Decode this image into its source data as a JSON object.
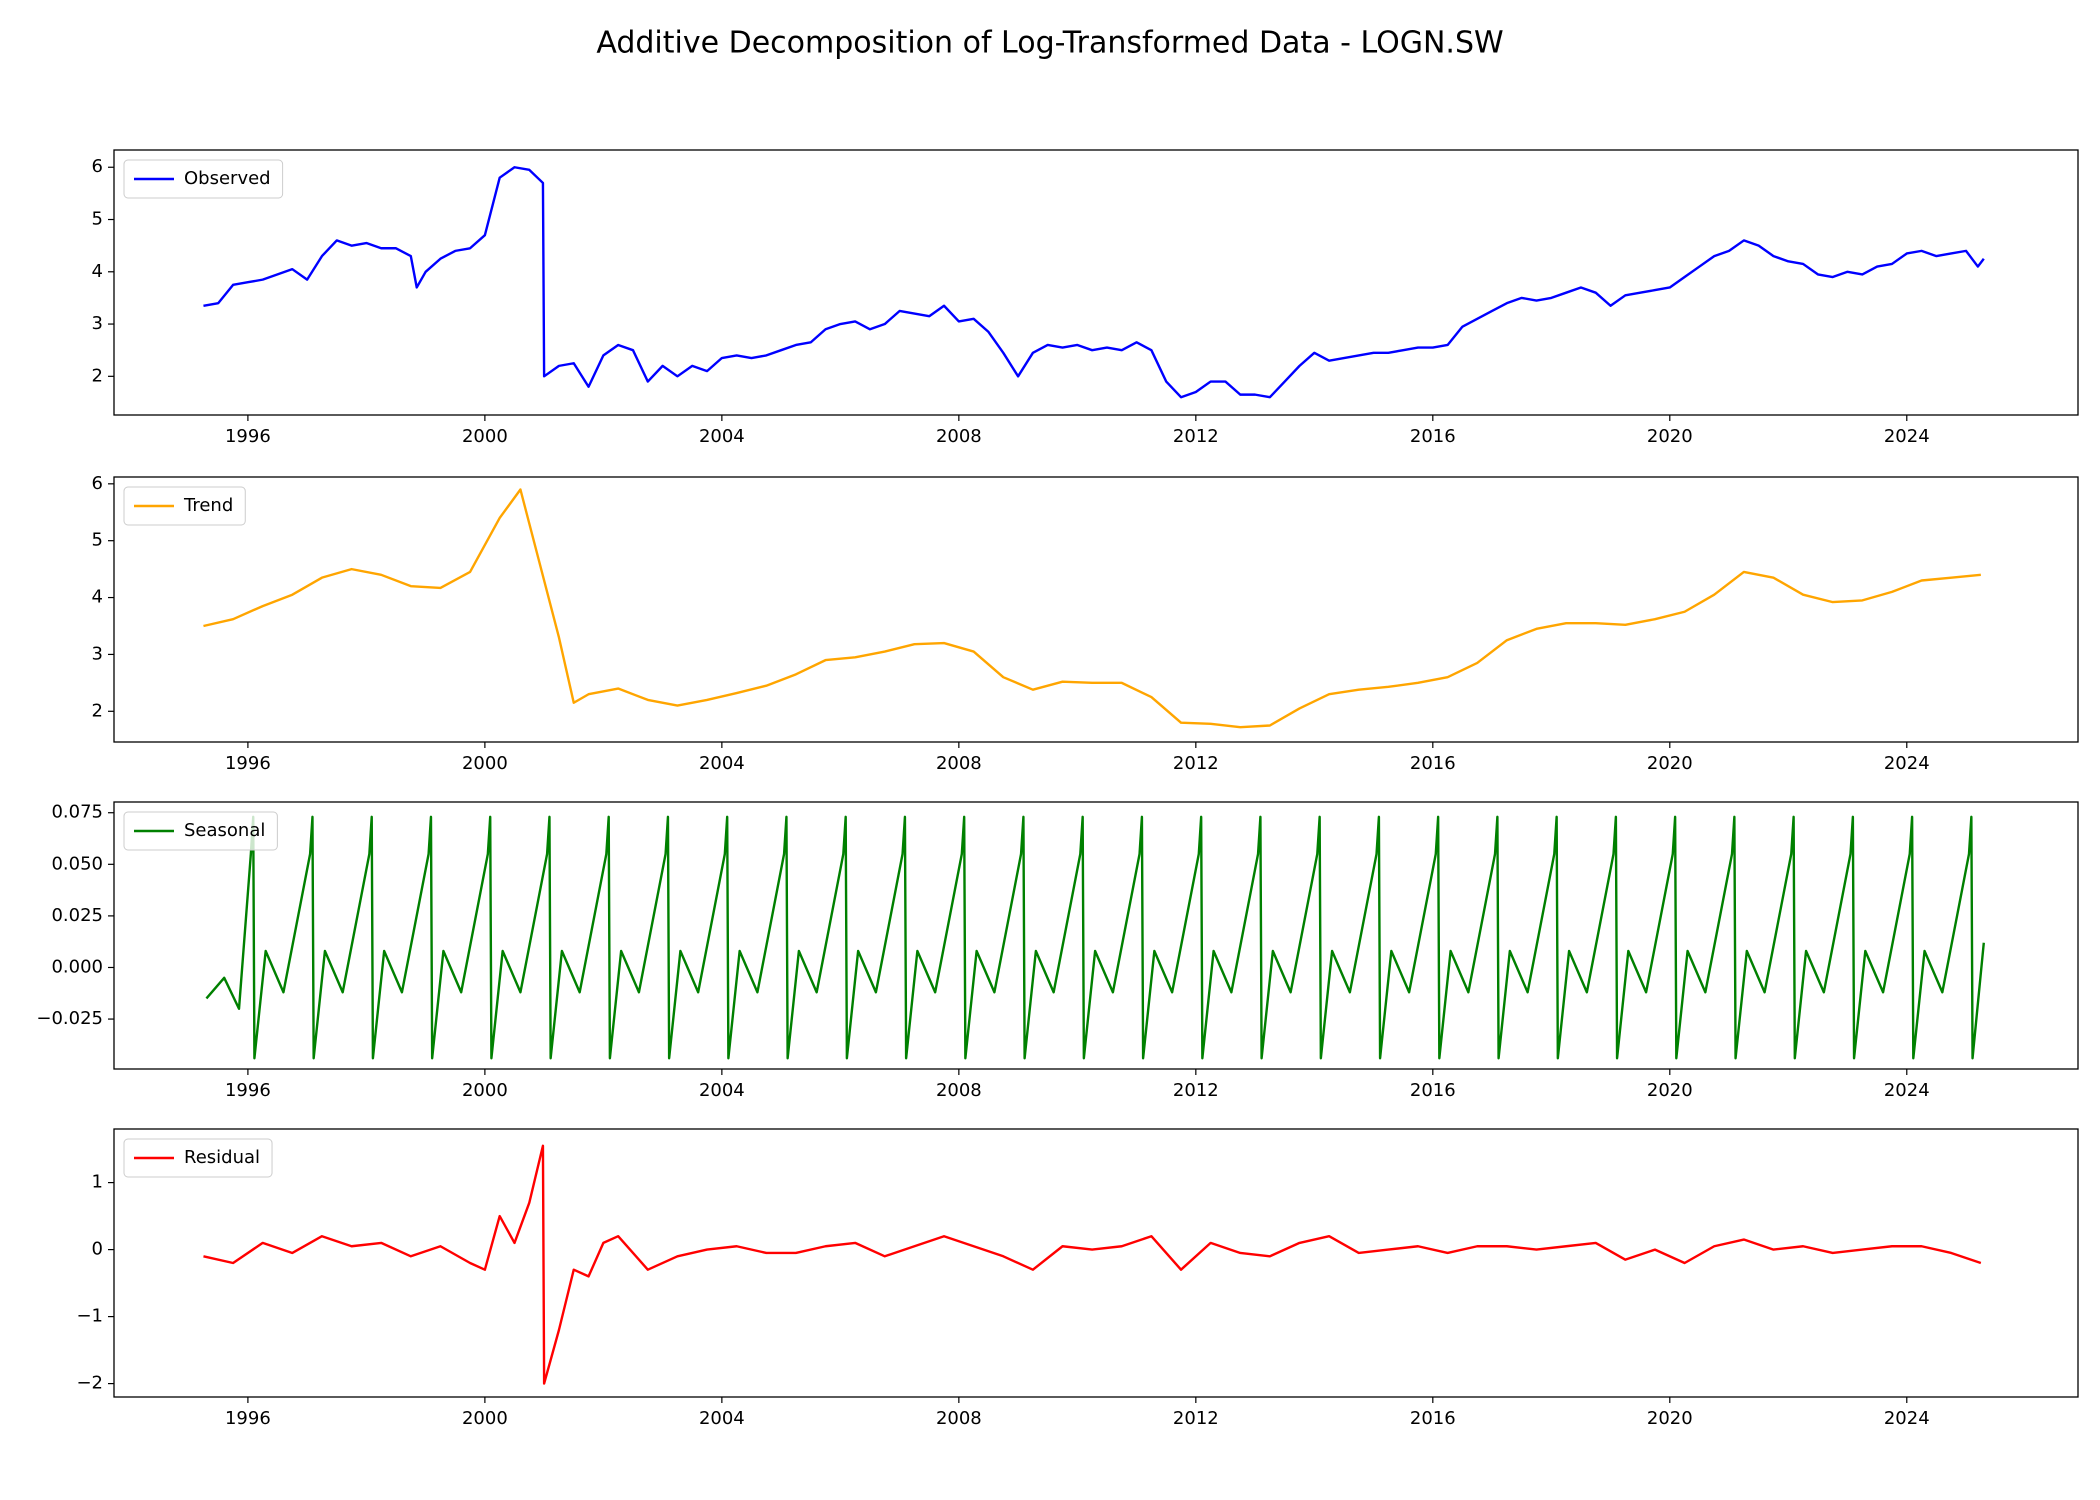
{
  "title": "Additive Decomposition of Log-Transformed Data - LOGN.SW",
  "legend": "upper left",
  "chart_data": [
    {
      "type": "line",
      "xlim": [
        1993.74,
        2026.89
      ],
      "xticks": [
        1996,
        2000,
        2004,
        2008,
        2012,
        2016,
        2020,
        2024
      ],
      "ylim": [
        1.26,
        6.33
      ],
      "yticks": [
        2,
        3,
        4,
        5,
        6
      ],
      "series": [
        {
          "name": "Observed",
          "color": "#0000ff",
          "x": [
            1995.25,
            1995.5,
            1995.75,
            1996,
            1996.25,
            1996.5,
            1996.75,
            1997,
            1997.25,
            1997.5,
            1997.75,
            1998,
            1998.25,
            1998.5,
            1998.75,
            1998.85,
            1999,
            1999.25,
            1999.5,
            1999.75,
            2000,
            2000.25,
            2000.5,
            2000.75,
            2000.98,
            2001,
            2001.25,
            2001.5,
            2001.75,
            2002,
            2002.25,
            2002.5,
            2002.75,
            2003,
            2003.25,
            2003.5,
            2003.75,
            2004,
            2004.25,
            2004.5,
            2004.75,
            2005,
            2005.25,
            2005.5,
            2005.75,
            2006,
            2006.25,
            2006.5,
            2006.75,
            2007,
            2007.25,
            2007.5,
            2007.75,
            2008,
            2008.25,
            2008.5,
            2008.75,
            2009,
            2009.25,
            2009.5,
            2009.75,
            2010,
            2010.25,
            2010.5,
            2010.75,
            2011,
            2011.25,
            2011.5,
            2011.75,
            2012,
            2012.25,
            2012.5,
            2012.75,
            2013,
            2013.25,
            2013.5,
            2013.75,
            2014,
            2014.25,
            2014.5,
            2014.75,
            2015,
            2015.25,
            2015.5,
            2015.75,
            2016,
            2016.25,
            2016.5,
            2016.75,
            2017,
            2017.25,
            2017.5,
            2017.75,
            2018,
            2018.25,
            2018.5,
            2018.75,
            2019,
            2019.25,
            2019.5,
            2019.75,
            2020,
            2020.25,
            2020.5,
            2020.75,
            2021,
            2021.25,
            2021.5,
            2021.75,
            2022,
            2022.25,
            2022.5,
            2022.75,
            2023,
            2023.25,
            2023.5,
            2023.75,
            2024,
            2024.25,
            2024.5,
            2024.75,
            2025,
            2025.2,
            2025.3
          ],
          "values": [
            3.35,
            3.4,
            3.75,
            3.8,
            3.85,
            3.95,
            4.05,
            3.85,
            4.3,
            4.6,
            4.5,
            4.55,
            4.45,
            4.45,
            4.3,
            3.7,
            4.0,
            4.25,
            4.4,
            4.45,
            4.7,
            5.8,
            6.0,
            5.95,
            5.7,
            2.0,
            2.2,
            2.25,
            1.8,
            2.4,
            2.6,
            2.5,
            1.9,
            2.2,
            2.0,
            2.2,
            2.1,
            2.35,
            2.4,
            2.35,
            2.4,
            2.5,
            2.6,
            2.65,
            2.9,
            3.0,
            3.05,
            2.9,
            3.0,
            3.25,
            3.2,
            3.15,
            3.35,
            3.05,
            3.1,
            2.85,
            2.45,
            2.0,
            2.45,
            2.6,
            2.55,
            2.6,
            2.5,
            2.55,
            2.5,
            2.65,
            2.5,
            1.9,
            1.6,
            1.7,
            1.9,
            1.9,
            1.65,
            1.65,
            1.6,
            1.9,
            2.2,
            2.45,
            2.3,
            2.35,
            2.4,
            2.45,
            2.45,
            2.5,
            2.55,
            2.55,
            2.6,
            2.95,
            3.1,
            3.25,
            3.4,
            3.5,
            3.45,
            3.5,
            3.6,
            3.7,
            3.6,
            3.35,
            3.55,
            3.6,
            3.65,
            3.7,
            3.9,
            4.1,
            4.3,
            4.4,
            4.6,
            4.5,
            4.3,
            4.2,
            4.15,
            3.95,
            3.9,
            4.0,
            3.95,
            4.1,
            4.15,
            4.35,
            4.4,
            4.3,
            4.35,
            4.4,
            4.1,
            4.25
          ]
        }
      ]
    },
    {
      "type": "line",
      "xlim": [
        1993.74,
        2026.89
      ],
      "xticks": [
        1996,
        2000,
        2004,
        2008,
        2012,
        2016,
        2020,
        2024
      ],
      "ylim": [
        1.46,
        6.12
      ],
      "yticks": [
        2,
        3,
        4,
        5,
        6
      ],
      "series": [
        {
          "name": "Trend",
          "color": "#ffa500",
          "x": [
            1995.25,
            1995.75,
            1996.25,
            1996.75,
            1997.25,
            1997.75,
            1998.25,
            1998.75,
            1999.25,
            1999.75,
            2000.25,
            2000.6,
            2000.75,
            2001.25,
            2001.5,
            2001.75,
            2002.25,
            2002.75,
            2003.25,
            2003.75,
            2004.25,
            2004.75,
            2005.25,
            2005.75,
            2006.25,
            2006.75,
            2007.25,
            2007.75,
            2008.25,
            2008.75,
            2009.25,
            2009.75,
            2010.25,
            2010.75,
            2011.25,
            2011.75,
            2012.25,
            2012.75,
            2013.25,
            2013.75,
            2014.25,
            2014.75,
            2015.25,
            2015.75,
            2016.25,
            2016.75,
            2017.25,
            2017.75,
            2018.25,
            2018.75,
            2019.25,
            2019.75,
            2020.25,
            2020.75,
            2021.25,
            2021.75,
            2022.25,
            2022.75,
            2023.25,
            2023.75,
            2024.25,
            2024.75,
            2025.25
          ],
          "values": [
            3.5,
            3.62,
            3.85,
            4.05,
            4.35,
            4.5,
            4.4,
            4.2,
            4.17,
            4.45,
            5.4,
            5.9,
            5.3,
            3.3,
            2.15,
            2.3,
            2.4,
            2.2,
            2.1,
            2.2,
            2.32,
            2.45,
            2.65,
            2.9,
            2.95,
            3.05,
            3.18,
            3.2,
            3.05,
            2.6,
            2.38,
            2.52,
            2.5,
            2.5,
            2.25,
            1.8,
            1.78,
            1.72,
            1.75,
            2.05,
            2.3,
            2.38,
            2.43,
            2.5,
            2.6,
            2.85,
            3.25,
            3.45,
            3.55,
            3.55,
            3.52,
            3.62,
            3.75,
            4.05,
            4.45,
            4.35,
            4.05,
            3.92,
            3.95,
            4.1,
            4.3,
            4.35,
            4.4
          ]
        }
      ]
    },
    {
      "type": "line",
      "xlim": [
        1993.74,
        2026.89
      ],
      "xticks": [
        1996,
        2000,
        2004,
        2008,
        2012,
        2016,
        2020,
        2024
      ],
      "ylim": [
        -0.0492,
        0.0802
      ],
      "yticks": [
        {
          "value": -0.025,
          "label": "−0.025"
        },
        {
          "value": 0,
          "label": "0.000"
        },
        0.025,
        {
          "value": 0.05,
          "label": "0.050"
        },
        0.075
      ],
      "series": [
        {
          "name": "Seasonal",
          "color": "#008000",
          "x": [
            1995.3,
            1995.6,
            1995.85,
            1996.05,
            1996.09,
            1996.11,
            1996.3,
            1996.6,
            1997.05,
            1997.09,
            1997.11,
            1997.3,
            1997.6,
            1998.05,
            1998.09,
            1998.11,
            1998.3,
            1998.6,
            1999.05,
            1999.09,
            1999.11,
            1999.3,
            1999.6,
            2000.05,
            2000.09,
            2000.11,
            2000.3,
            2000.6,
            2001.05,
            2001.09,
            2001.11,
            2001.3,
            2001.6,
            2002.05,
            2002.09,
            2002.11,
            2002.3,
            2002.6,
            2003.05,
            2003.09,
            2003.11,
            2003.3,
            2003.6,
            2004.05,
            2004.09,
            2004.11,
            2004.3,
            2004.6,
            2005.05,
            2005.09,
            2005.11,
            2005.3,
            2005.6,
            2006.05,
            2006.09,
            2006.11,
            2006.3,
            2006.6,
            2007.05,
            2007.09,
            2007.11,
            2007.3,
            2007.6,
            2008.05,
            2008.09,
            2008.11,
            2008.3,
            2008.6,
            2009.05,
            2009.09,
            2009.11,
            2009.3,
            2009.6,
            2010.05,
            2010.09,
            2010.11,
            2010.3,
            2010.6,
            2011.05,
            2011.09,
            2011.11,
            2011.3,
            2011.6,
            2012.05,
            2012.09,
            2012.11,
            2012.3,
            2012.6,
            2013.05,
            2013.09,
            2013.11,
            2013.3,
            2013.6,
            2014.05,
            2014.09,
            2014.11,
            2014.3,
            2014.6,
            2015.05,
            2015.09,
            2015.11,
            2015.3,
            2015.6,
            2016.05,
            2016.09,
            2016.11,
            2016.3,
            2016.6,
            2017.05,
            2017.09,
            2017.11,
            2017.3,
            2017.6,
            2018.05,
            2018.09,
            2018.11,
            2018.3,
            2018.6,
            2019.05,
            2019.09,
            2019.11,
            2019.3,
            2019.6,
            2020.05,
            2020.09,
            2020.11,
            2020.3,
            2020.6,
            2021.05,
            2021.09,
            2021.11,
            2021.3,
            2021.6,
            2022.05,
            2022.09,
            2022.11,
            2022.3,
            2022.6,
            2023.05,
            2023.09,
            2023.11,
            2023.3,
            2023.6,
            2024.05,
            2024.09,
            2024.11,
            2024.3,
            2024.6,
            2025.05,
            2025.09,
            2025.11,
            2025.3
          ],
          "values": [
            -0.015,
            -0.005,
            -0.02,
            0.055,
            0.073,
            -0.044,
            0.008,
            -0.012,
            0.055,
            0.073,
            -0.044,
            0.008,
            -0.012,
            0.055,
            0.073,
            -0.044,
            0.008,
            -0.012,
            0.055,
            0.073,
            -0.044,
            0.008,
            -0.012,
            0.055,
            0.073,
            -0.044,
            0.008,
            -0.012,
            0.055,
            0.073,
            -0.044,
            0.008,
            -0.012,
            0.055,
            0.073,
            -0.044,
            0.008,
            -0.012,
            0.055,
            0.073,
            -0.044,
            0.008,
            -0.012,
            0.055,
            0.073,
            -0.044,
            0.008,
            -0.012,
            0.055,
            0.073,
            -0.044,
            0.008,
            -0.012,
            0.055,
            0.073,
            -0.044,
            0.008,
            -0.012,
            0.055,
            0.073,
            -0.044,
            0.008,
            -0.012,
            0.055,
            0.073,
            -0.044,
            0.008,
            -0.012,
            0.055,
            0.073,
            -0.044,
            0.008,
            -0.012,
            0.055,
            0.073,
            -0.044,
            0.008,
            -0.012,
            0.055,
            0.073,
            -0.044,
            0.008,
            -0.012,
            0.055,
            0.073,
            -0.044,
            0.008,
            -0.012,
            0.055,
            0.073,
            -0.044,
            0.008,
            -0.012,
            0.055,
            0.073,
            -0.044,
            0.008,
            -0.012,
            0.055,
            0.073,
            -0.044,
            0.008,
            -0.012,
            0.055,
            0.073,
            -0.044,
            0.008,
            -0.012,
            0.055,
            0.073,
            -0.044,
            0.008,
            -0.012,
            0.055,
            0.073,
            -0.044,
            0.008,
            -0.012,
            0.055,
            0.073,
            -0.044,
            0.008,
            -0.012,
            0.055,
            0.073,
            -0.044,
            0.008,
            -0.012,
            0.055,
            0.073,
            -0.044,
            0.008,
            -0.012,
            0.055,
            0.073,
            -0.044,
            0.008,
            -0.012,
            0.055,
            0.073,
            -0.044,
            0.008,
            -0.012,
            0.055,
            0.073,
            -0.044,
            0.008,
            -0.012,
            0.055,
            0.073,
            -0.044,
            0.012
          ]
        }
      ]
    },
    {
      "type": "line",
      "xlim": [
        1993.74,
        2026.89
      ],
      "xticks": [
        1996,
        2000,
        2004,
        2008,
        2012,
        2016,
        2020,
        2024
      ],
      "ylim": [
        -2.2,
        1.8
      ],
      "yticks": [
        {
          "value": -2,
          "label": "−2"
        },
        {
          "value": -1,
          "label": "−1"
        },
        0,
        1
      ],
      "series": [
        {
          "name": "Residual",
          "color": "#ff0000",
          "x": [
            1995.25,
            1995.75,
            1996.25,
            1996.75,
            1997.25,
            1997.75,
            1998.25,
            1998.75,
            1999.25,
            1999.75,
            2000,
            2000.25,
            2000.5,
            2000.75,
            2000.98,
            2001,
            2001.25,
            2001.5,
            2001.75,
            2002,
            2002.25,
            2002.75,
            2003.25,
            2003.75,
            2004.25,
            2004.75,
            2005.25,
            2005.75,
            2006.25,
            2006.75,
            2007.25,
            2007.75,
            2008.25,
            2008.75,
            2009.25,
            2009.75,
            2010.25,
            2010.75,
            2011.25,
            2011.75,
            2012.25,
            2012.75,
            2013.25,
            2013.75,
            2014.25,
            2014.75,
            2015.25,
            2015.75,
            2016.25,
            2016.75,
            2017.25,
            2017.75,
            2018.25,
            2018.75,
            2019.25,
            2019.75,
            2020.25,
            2020.75,
            2021.25,
            2021.75,
            2022.25,
            2022.75,
            2023.25,
            2023.75,
            2024.25,
            2024.75,
            2025.25
          ],
          "values": [
            -0.1,
            -0.2,
            0.1,
            -0.05,
            0.2,
            0.05,
            0.1,
            -0.1,
            0.05,
            -0.2,
            -0.3,
            0.5,
            0.1,
            0.7,
            1.55,
            -2.0,
            -1.2,
            -0.3,
            -0.4,
            0.1,
            0.2,
            -0.3,
            -0.1,
            0.0,
            0.05,
            -0.05,
            -0.05,
            0.05,
            0.1,
            -0.1,
            0.05,
            0.2,
            0.05,
            -0.1,
            -0.3,
            0.05,
            0.0,
            0.05,
            0.2,
            -0.3,
            0.1,
            -0.05,
            -0.1,
            0.1,
            0.2,
            -0.05,
            0.0,
            0.05,
            -0.05,
            0.05,
            0.05,
            0.0,
            0.05,
            0.1,
            -0.15,
            0.0,
            -0.2,
            0.05,
            0.15,
            0.0,
            0.05,
            -0.05,
            0.0,
            0.05,
            0.05,
            -0.05,
            -0.2
          ]
        }
      ]
    }
  ]
}
